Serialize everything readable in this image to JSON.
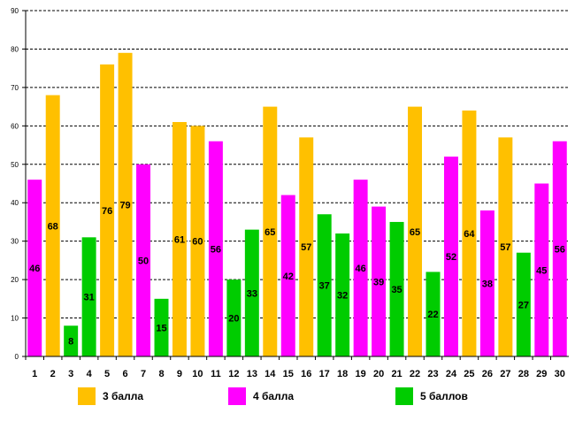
{
  "chart_data": {
    "type": "bar",
    "title": "",
    "xlabel": "",
    "ylabel": "",
    "ylim": [
      0,
      90
    ],
    "yticks": [
      0,
      10,
      20,
      30,
      40,
      50,
      60,
      70,
      80,
      90
    ],
    "grid": true,
    "categories": [
      "1",
      "2",
      "3",
      "4",
      "5",
      "6",
      "7",
      "8",
      "9",
      "10",
      "11",
      "12",
      "13",
      "14",
      "15",
      "16",
      "17",
      "18",
      "19",
      "20",
      "21",
      "22",
      "23",
      "24",
      "25",
      "26",
      "27",
      "28",
      "29",
      "30"
    ],
    "values": [
      46,
      68,
      8,
      31,
      76,
      79,
      50,
      15,
      61,
      60,
      56,
      20,
      33,
      65,
      42,
      57,
      37,
      32,
      46,
      39,
      35,
      65,
      22,
      52,
      64,
      38,
      57,
      27,
      45,
      56
    ],
    "groups": [
      "4",
      "3",
      "5",
      "5",
      "3",
      "3",
      "4",
      "5",
      "3",
      "3",
      "4",
      "5",
      "5",
      "3",
      "4",
      "3",
      "5",
      "5",
      "4",
      "4",
      "5",
      "3",
      "5",
      "4",
      "3",
      "4",
      "3",
      "5",
      "4",
      "4"
    ],
    "legend": [
      {
        "key": "3",
        "label": "3 балла",
        "color": "#FFC000"
      },
      {
        "key": "4",
        "label": "4 балла",
        "color": "#FF00FF"
      },
      {
        "key": "5",
        "label": "5 баллов",
        "color": "#00CC00"
      }
    ],
    "legend_position": "bottom"
  }
}
